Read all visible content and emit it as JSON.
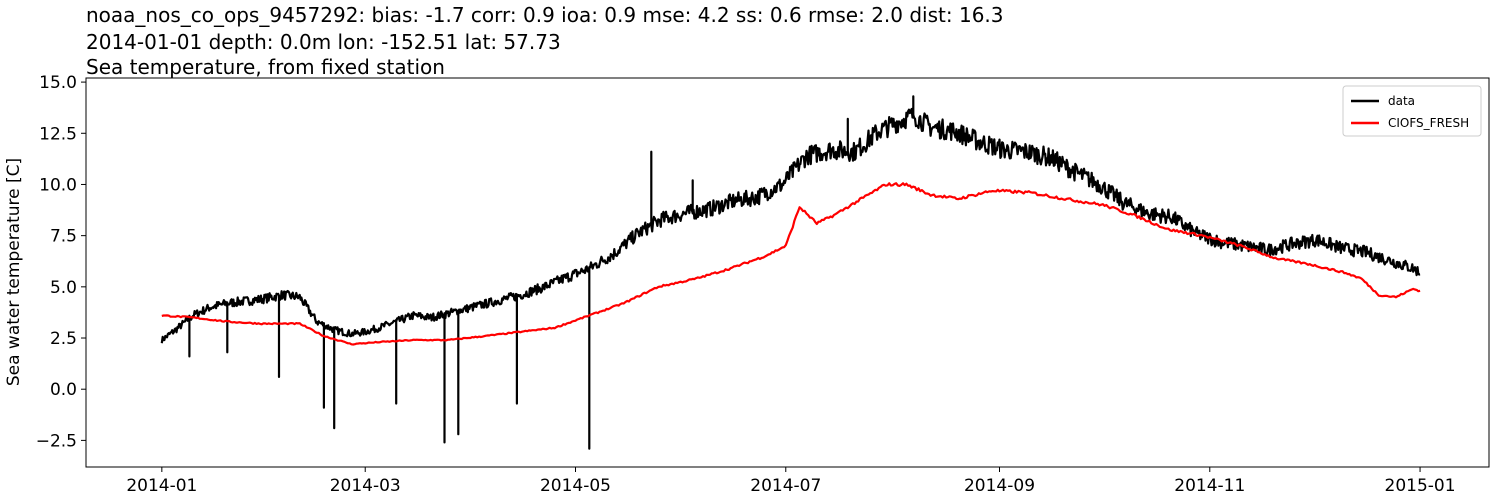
{
  "chart_data": {
    "type": "line",
    "title_lines": [
      "noaa_nos_co_ops_9457292: bias: -1.7  corr: 0.9  ioa: 0.9  mse: 4.2  ss: 0.6  rmse: 2.0  dist: 16.3",
      "2014-01-01 depth: 0.0m lon: -152.51 lat: 57.73",
      "Sea temperature, from fixed station"
    ],
    "xlabel": "",
    "ylabel": "Sea water temperature [C]",
    "xlim": [
      "2013-12-10",
      "2015-01-21"
    ],
    "ylim": [
      -3.8,
      15.2
    ],
    "x_ticks": [
      "2014-01",
      "2014-03",
      "2014-05",
      "2014-07",
      "2014-09",
      "2014-11",
      "2015-01"
    ],
    "x_tick_dates": [
      "2014-01-01",
      "2014-03-01",
      "2014-05-01",
      "2014-07-01",
      "2014-09-01",
      "2014-11-01",
      "2015-01-01"
    ],
    "y_ticks": [
      -2.5,
      0.0,
      2.5,
      5.0,
      7.5,
      10.0,
      12.5,
      15.0
    ],
    "y_tick_labels": [
      "−2.5",
      "0.0",
      "2.5",
      "5.0",
      "7.5",
      "10.0",
      "12.5",
      "15.0"
    ],
    "grid": false,
    "legend_position": "top-right",
    "series": [
      {
        "name": "data",
        "color": "#000000",
        "x": [
          "2014-01-01",
          "2014-01-05",
          "2014-01-10",
          "2014-01-15",
          "2014-01-20",
          "2014-01-25",
          "2014-01-30",
          "2014-02-05",
          "2014-02-10",
          "2014-02-15",
          "2014-02-20",
          "2014-02-25",
          "2014-03-01",
          "2014-03-05",
          "2014-03-10",
          "2014-03-15",
          "2014-03-20",
          "2014-03-25",
          "2014-04-01",
          "2014-04-08",
          "2014-04-15",
          "2014-04-22",
          "2014-04-29",
          "2014-05-05",
          "2014-05-12",
          "2014-05-19",
          "2014-05-26",
          "2014-06-02",
          "2014-06-09",
          "2014-06-16",
          "2014-06-23",
          "2014-06-30",
          "2014-07-07",
          "2014-07-14",
          "2014-07-21",
          "2014-07-28",
          "2014-08-02",
          "2014-08-07",
          "2014-08-12",
          "2014-08-19",
          "2014-08-26",
          "2014-09-02",
          "2014-09-09",
          "2014-09-16",
          "2014-09-23",
          "2014-09-30",
          "2014-10-07",
          "2014-10-14",
          "2014-10-21",
          "2014-10-28",
          "2014-11-04",
          "2014-11-11",
          "2014-11-18",
          "2014-11-25",
          "2014-12-02",
          "2014-12-09",
          "2014-12-16",
          "2014-12-23",
          "2014-12-30",
          "2015-01-01"
        ],
        "y": [
          2.4,
          2.9,
          3.6,
          4.0,
          4.2,
          4.3,
          4.4,
          4.6,
          4.5,
          3.3,
          2.9,
          2.7,
          2.8,
          3.0,
          3.3,
          3.6,
          3.5,
          3.7,
          4.0,
          4.3,
          4.6,
          5.0,
          5.5,
          5.9,
          6.6,
          7.6,
          8.3,
          8.6,
          8.8,
          9.2,
          9.4,
          10.0,
          11.4,
          11.7,
          11.6,
          12.6,
          13.0,
          13.4,
          12.8,
          12.6,
          12.1,
          11.7,
          11.6,
          11.3,
          10.6,
          10.0,
          9.1,
          8.6,
          8.4,
          7.6,
          7.2,
          7.0,
          6.8,
          7.1,
          7.3,
          6.9,
          6.7,
          6.3,
          5.9,
          5.7
        ],
        "spikes": [
          {
            "x": "2014-01-09",
            "y": 1.6
          },
          {
            "x": "2014-01-20",
            "y": 1.8
          },
          {
            "x": "2014-02-04",
            "y": 0.6
          },
          {
            "x": "2014-02-17",
            "y": -0.9
          },
          {
            "x": "2014-02-20",
            "y": -1.9
          },
          {
            "x": "2014-03-10",
            "y": -0.7
          },
          {
            "x": "2014-03-24",
            "y": -2.6
          },
          {
            "x": "2014-03-28",
            "y": -2.2
          },
          {
            "x": "2014-04-14",
            "y": -0.7
          },
          {
            "x": "2014-05-05",
            "y": -2.9
          },
          {
            "x": "2014-05-23",
            "y": 11.6
          },
          {
            "x": "2014-06-04",
            "y": 10.2
          },
          {
            "x": "2014-07-19",
            "y": 13.2
          },
          {
            "x": "2014-08-07",
            "y": 14.3
          }
        ]
      },
      {
        "name": "CIOFS_FRESH",
        "color": "#ff0000",
        "x": [
          "2014-01-01",
          "2014-01-10",
          "2014-01-20",
          "2014-01-30",
          "2014-02-10",
          "2014-02-17",
          "2014-02-25",
          "2014-03-05",
          "2014-03-15",
          "2014-03-25",
          "2014-04-05",
          "2014-04-15",
          "2014-04-25",
          "2014-05-05",
          "2014-05-15",
          "2014-05-25",
          "2014-06-05",
          "2014-06-15",
          "2014-06-25",
          "2014-07-01",
          "2014-07-05",
          "2014-07-10",
          "2014-07-15",
          "2014-07-22",
          "2014-07-30",
          "2014-08-05",
          "2014-08-12",
          "2014-08-20",
          "2014-08-30",
          "2014-09-10",
          "2014-09-20",
          "2014-10-01",
          "2014-10-10",
          "2014-10-20",
          "2014-10-30",
          "2014-11-10",
          "2014-11-20",
          "2014-11-30",
          "2014-12-10",
          "2014-12-15",
          "2014-12-20",
          "2014-12-25",
          "2014-12-30",
          "2015-01-01"
        ],
        "y": [
          3.6,
          3.5,
          3.3,
          3.2,
          3.2,
          2.6,
          2.2,
          2.3,
          2.4,
          2.4,
          2.6,
          2.8,
          3.0,
          3.6,
          4.2,
          5.0,
          5.4,
          5.9,
          6.5,
          7.0,
          8.9,
          8.1,
          8.5,
          9.2,
          10.0,
          10.0,
          9.5,
          9.3,
          9.7,
          9.6,
          9.3,
          9.0,
          8.5,
          7.8,
          7.5,
          7.0,
          6.4,
          6.1,
          5.7,
          5.4,
          4.6,
          4.5,
          4.9,
          4.8
        ]
      }
    ]
  }
}
